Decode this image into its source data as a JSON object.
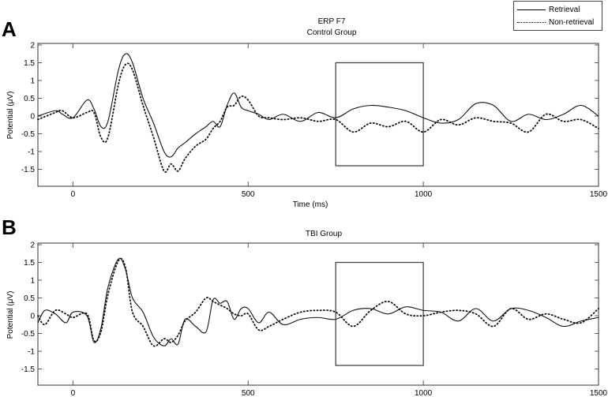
{
  "figure": {
    "panel_a": {
      "letter": "A",
      "title_line1": "ERP F7",
      "title_line2": "Control Group",
      "xlabel": "Time (ms)",
      "ylabel": "Potential (μV)"
    },
    "panel_b": {
      "letter": "B",
      "title": "TBI Group",
      "ylabel": "Potential (μV)"
    },
    "legend": {
      "items": [
        {
          "label": "Retrieval",
          "style": "solid"
        },
        {
          "label": "Non-retrieval",
          "style": "dotted"
        }
      ]
    },
    "x_ticks": [
      "0",
      "500",
      "1000",
      "1500"
    ],
    "y_ticks": [
      "2",
      "1.5",
      "1",
      "0.5",
      "0",
      "-0.5",
      "-1",
      "-1.5"
    ]
  },
  "chart_data": [
    {
      "type": "line",
      "title": "ERP F7 Control Group",
      "panel": "A",
      "xlabel": "Time (ms)",
      "ylabel": "Potential (μV)",
      "xlim": [
        -100,
        1500
      ],
      "ylim": [
        -1.95,
        2.05
      ],
      "x_ticks": [
        0,
        500,
        1000,
        1500
      ],
      "y_ticks": [
        -1.5,
        -1,
        -0.5,
        0,
        0.5,
        1,
        1.5,
        2
      ],
      "grid": false,
      "legend_position": "top-right (outside)",
      "annotations": [
        {
          "type": "rectangle",
          "x0": 750,
          "x1": 1000,
          "y0": -1.4,
          "y1": 1.5
        }
      ],
      "x": [
        -100,
        -50,
        -30,
        0,
        40,
        60,
        80,
        100,
        130,
        150,
        170,
        200,
        230,
        260,
        280,
        300,
        320,
        350,
        380,
        400,
        420,
        440,
        460,
        480,
        500,
        530,
        560,
        600,
        650,
        700,
        750,
        800,
        850,
        900,
        950,
        1000,
        1050,
        1100,
        1150,
        1200,
        1250,
        1300,
        1350,
        1400,
        1450,
        1500
      ],
      "series": [
        {
          "name": "Retrieval",
          "style": "solid",
          "values": [
            0.0,
            0.15,
            0.05,
            -0.05,
            0.45,
            0.2,
            -0.3,
            -0.15,
            1.3,
            1.75,
            1.5,
            0.5,
            -0.2,
            -1.0,
            -1.15,
            -0.9,
            -0.75,
            -0.5,
            -0.3,
            -0.15,
            -0.3,
            0.3,
            0.65,
            0.25,
            0.15,
            0.05,
            -0.1,
            0.05,
            -0.15,
            0.1,
            -0.05,
            0.2,
            0.3,
            0.25,
            0.15,
            -0.05,
            -0.2,
            -0.1,
            0.35,
            0.3,
            -0.15,
            0.05,
            -0.1,
            0.05,
            0.3,
            0.0
          ]
        },
        {
          "name": "Non-retrieval",
          "style": "dotted",
          "values": [
            -0.1,
            0.1,
            0.15,
            -0.05,
            0.1,
            0.1,
            -0.6,
            -0.6,
            0.9,
            1.45,
            1.3,
            0.3,
            -0.6,
            -1.55,
            -1.35,
            -1.55,
            -1.2,
            -0.85,
            -0.65,
            -0.35,
            -0.15,
            0.25,
            0.3,
            0.55,
            0.45,
            0.0,
            -0.05,
            -0.1,
            -0.05,
            -0.15,
            -0.1,
            -0.45,
            -0.2,
            -0.3,
            -0.15,
            -0.45,
            -0.1,
            -0.25,
            -0.05,
            -0.15,
            -0.2,
            -0.45,
            0.05,
            -0.15,
            -0.1,
            -0.35
          ]
        }
      ]
    },
    {
      "type": "line",
      "title": "TBI Group",
      "panel": "B",
      "xlabel": "",
      "ylabel": "Potential (μV)",
      "xlim": [
        -100,
        1500
      ],
      "ylim": [
        -1.95,
        2.05
      ],
      "x_ticks": [
        0,
        500,
        1000,
        1500
      ],
      "y_ticks": [
        -1.5,
        -1,
        -0.5,
        0,
        0.5,
        1,
        1.5,
        2
      ],
      "grid": false,
      "annotations": [
        {
          "type": "rectangle",
          "x0": 750,
          "x1": 1000,
          "y0": -1.4,
          "y1": 1.5
        }
      ],
      "x": [
        -100,
        -80,
        -50,
        -20,
        0,
        40,
        60,
        80,
        100,
        130,
        150,
        170,
        200,
        230,
        260,
        280,
        300,
        320,
        350,
        380,
        400,
        420,
        440,
        460,
        480,
        500,
        530,
        560,
        600,
        650,
        700,
        750,
        800,
        850,
        900,
        950,
        1000,
        1050,
        1100,
        1150,
        1200,
        1250,
        1300,
        1350,
        1400,
        1450,
        1500
      ],
      "series": [
        {
          "name": "Retrieval",
          "style": "solid",
          "values": [
            -0.2,
            0.15,
            0.05,
            -0.2,
            0.1,
            0.0,
            -0.75,
            -0.35,
            0.8,
            1.6,
            1.3,
            0.5,
            0.1,
            -0.6,
            -0.85,
            -0.65,
            -0.8,
            -0.1,
            -0.3,
            -0.45,
            0.45,
            0.35,
            0.4,
            -0.1,
            0.2,
            0.2,
            -0.2,
            0.1,
            -0.25,
            -0.1,
            -0.05,
            -0.1,
            0.15,
            0.2,
            0.05,
            0.25,
            0.15,
            0.1,
            -0.15,
            0.2,
            -0.15,
            0.2,
            0.15,
            -0.05,
            -0.3,
            -0.15,
            -0.05
          ]
        },
        {
          "name": "Non-retrieval",
          "style": "dotted",
          "values": [
            0.0,
            -0.25,
            0.15,
            0.05,
            -0.05,
            0.05,
            -0.7,
            -0.45,
            0.6,
            1.55,
            1.35,
            0.1,
            -0.3,
            -0.85,
            -0.65,
            -0.75,
            -0.55,
            -0.15,
            0.1,
            0.5,
            0.4,
            0.3,
            0.2,
            0.05,
            0.0,
            0.05,
            -0.4,
            -0.3,
            -0.1,
            0.1,
            0.15,
            0.1,
            -0.3,
            0.15,
            0.4,
            0.05,
            0.0,
            0.1,
            0.15,
            0.05,
            -0.3,
            0.2,
            -0.1,
            0.05,
            -0.1,
            -0.2,
            0.2
          ]
        }
      ]
    }
  ]
}
